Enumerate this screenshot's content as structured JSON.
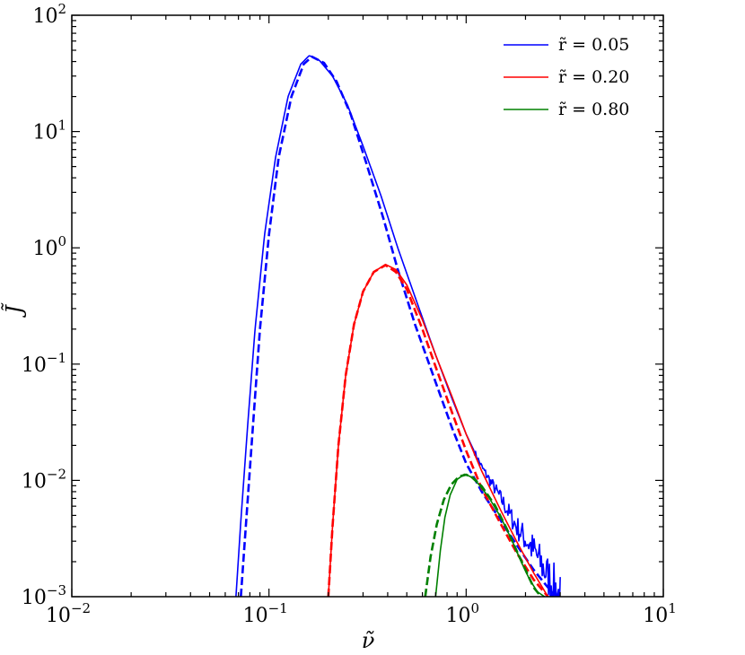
{
  "chart_data": {
    "type": "line",
    "title": "",
    "xlabel": "ν̃",
    "ylabel": "J̃",
    "xscale": "log",
    "yscale": "log",
    "xlim": [
      0.01,
      10
    ],
    "ylim": [
      0.001,
      100
    ],
    "grid": false,
    "legend_position": "top-right",
    "x_ticks": [
      {
        "value": 0.01,
        "base": "10",
        "exp": "−2"
      },
      {
        "value": 0.1,
        "base": "10",
        "exp": "−1"
      },
      {
        "value": 1,
        "base": "10",
        "exp": "0"
      },
      {
        "value": 10,
        "base": "10",
        "exp": "1"
      }
    ],
    "y_ticks": [
      {
        "value": 0.001,
        "base": "10",
        "exp": "−3"
      },
      {
        "value": 0.01,
        "base": "10",
        "exp": "−2"
      },
      {
        "value": 0.1,
        "base": "10",
        "exp": "−1"
      },
      {
        "value": 1,
        "base": "10",
        "exp": "0"
      },
      {
        "value": 10,
        "base": "10",
        "exp": "1"
      },
      {
        "value": 100,
        "base": "10",
        "exp": "2"
      }
    ],
    "series": [
      {
        "name": "r̃ = 0.05",
        "color": "#0000ff",
        "style": "solid",
        "noisy_tail": true,
        "x": [
          0.068,
          0.072,
          0.078,
          0.085,
          0.095,
          0.108,
          0.125,
          0.145,
          0.16,
          0.18,
          0.21,
          0.25,
          0.3,
          0.37,
          0.45,
          0.55,
          0.7,
          0.85,
          1.0,
          1.2,
          1.5,
          1.8,
          2.2,
          2.6,
          3.0
        ],
        "y": [
          0.001,
          0.0045,
          0.03,
          0.2,
          1.3,
          6.0,
          20,
          38,
          45,
          41,
          30,
          17,
          7.5,
          2.8,
          1.0,
          0.38,
          0.12,
          0.05,
          0.025,
          0.013,
          0.007,
          0.004,
          0.0025,
          0.0015,
          0.001
        ]
      },
      {
        "name": "",
        "color": "#0000ff",
        "style": "dashed",
        "x": [
          0.072,
          0.077,
          0.083,
          0.09,
          0.1,
          0.112,
          0.13,
          0.15,
          0.165,
          0.19,
          0.22,
          0.26,
          0.31,
          0.38,
          0.45,
          0.55,
          0.7,
          0.85,
          1.0,
          1.2,
          1.5,
          1.8,
          2.2,
          2.6,
          2.9
        ],
        "y": [
          0.001,
          0.005,
          0.03,
          0.2,
          1.3,
          6.0,
          20,
          38,
          44,
          39,
          27,
          14,
          5.5,
          1.8,
          0.65,
          0.22,
          0.07,
          0.028,
          0.014,
          0.008,
          0.0045,
          0.0028,
          0.0017,
          0.0012,
          0.001
        ]
      },
      {
        "name": "r̃ = 0.20",
        "color": "#ff0000",
        "style": "solid",
        "x": [
          0.2,
          0.21,
          0.225,
          0.245,
          0.27,
          0.3,
          0.34,
          0.39,
          0.44,
          0.5,
          0.6,
          0.7,
          0.85,
          1.0,
          1.2,
          1.5,
          1.8,
          2.2,
          2.6
        ],
        "y": [
          0.001,
          0.004,
          0.02,
          0.08,
          0.22,
          0.42,
          0.62,
          0.72,
          0.65,
          0.48,
          0.24,
          0.12,
          0.052,
          0.025,
          0.012,
          0.0055,
          0.003,
          0.0016,
          0.001
        ]
      },
      {
        "name": "",
        "color": "#ff0000",
        "style": "dashed",
        "x": [
          0.2,
          0.21,
          0.225,
          0.245,
          0.27,
          0.3,
          0.34,
          0.39,
          0.44,
          0.5,
          0.6,
          0.7,
          0.85,
          1.0,
          1.2,
          1.5,
          1.8,
          2.2,
          2.6
        ],
        "y": [
          0.001,
          0.004,
          0.02,
          0.08,
          0.22,
          0.42,
          0.62,
          0.71,
          0.62,
          0.44,
          0.2,
          0.095,
          0.038,
          0.018,
          0.0085,
          0.0042,
          0.0024,
          0.0014,
          0.001
        ]
      },
      {
        "name": "r̃ = 0.80",
        "color": "#008000",
        "style": "solid",
        "x": [
          0.7,
          0.74,
          0.78,
          0.83,
          0.9,
          0.98,
          1.05,
          1.15,
          1.3,
          1.5,
          1.7,
          1.9,
          2.1,
          2.3,
          2.5
        ],
        "y": [
          0.001,
          0.0025,
          0.0048,
          0.0075,
          0.0102,
          0.0113,
          0.0108,
          0.0094,
          0.0072,
          0.0048,
          0.0031,
          0.002,
          0.0014,
          0.0011,
          0.001
        ]
      },
      {
        "name": "",
        "color": "#008000",
        "style": "dashed",
        "x": [
          0.62,
          0.66,
          0.71,
          0.77,
          0.84,
          0.92,
          1.0,
          1.08,
          1.2,
          1.4,
          1.6,
          1.8,
          2.0,
          2.2,
          2.4
        ],
        "y": [
          0.001,
          0.0022,
          0.0042,
          0.0068,
          0.0092,
          0.0108,
          0.0112,
          0.0106,
          0.0089,
          0.0061,
          0.0039,
          0.0025,
          0.0017,
          0.0012,
          0.001
        ]
      }
    ]
  }
}
